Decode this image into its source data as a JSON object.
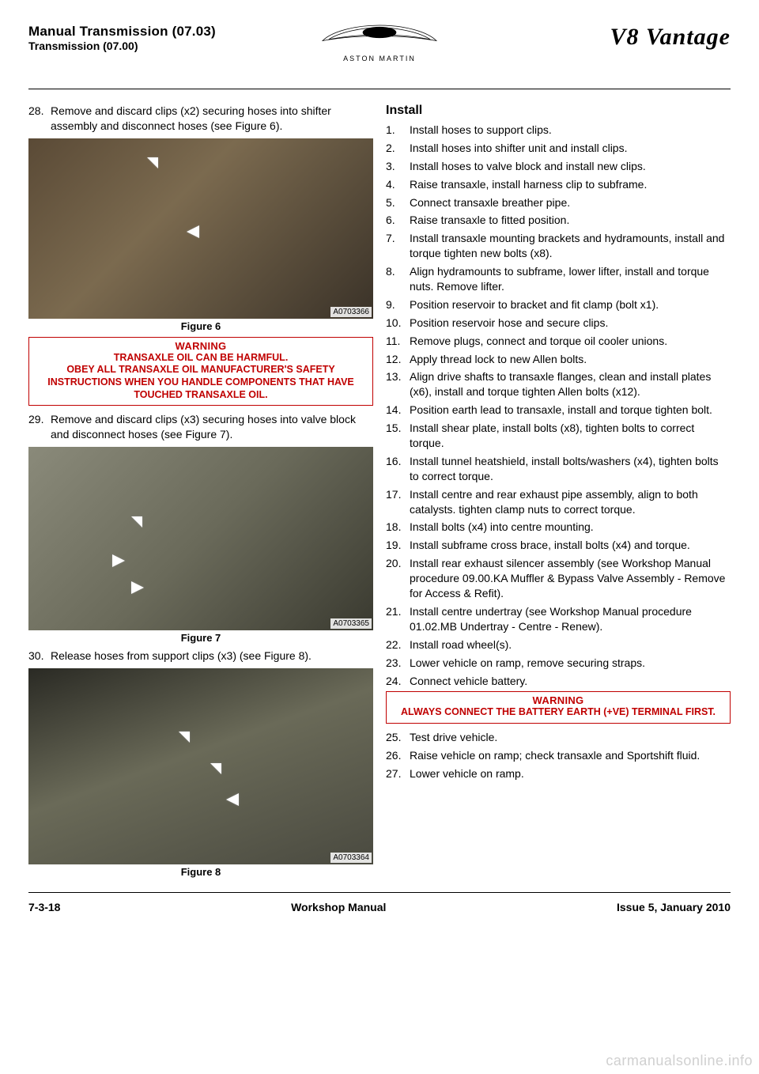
{
  "header": {
    "section_title": "Manual Transmission (07.03)",
    "section_sub": "Transmission (07.00)",
    "brand": "ASTON MARTIN",
    "model": "V8 Vantage"
  },
  "left_col": {
    "step28": {
      "n": "28.",
      "t": "Remove and discard clips (x2) securing hoses into shifter assembly and disconnect hoses (see Figure 6)."
    },
    "fig6": {
      "caption": "Figure 6",
      "imgid": "A0703366"
    },
    "warning1": {
      "title": "WARNING",
      "lines": [
        "TRANSAXLE OIL CAN BE HARMFUL.",
        "OBEY ALL TRANSAXLE OIL MANUFACTURER'S SAFETY INSTRUCTIONS WHEN YOU HANDLE COMPONENTS THAT HAVE TOUCHED TRANSAXLE OIL."
      ]
    },
    "step29": {
      "n": "29.",
      "t": "Remove and discard clips (x3) securing hoses into valve block and disconnect hoses (see Figure 7)."
    },
    "fig7": {
      "caption": "Figure 7",
      "imgid": "A0703365"
    },
    "step30": {
      "n": "30.",
      "t": "Release hoses from support clips (x3) (see Figure 8)."
    },
    "fig8": {
      "caption": "Figure 8",
      "imgid": "A0703364"
    }
  },
  "right_col": {
    "install_head": "Install",
    "steps": [
      {
        "n": "1.",
        "t": "Install hoses to support clips."
      },
      {
        "n": "2.",
        "t": "Install hoses into shifter unit and install clips."
      },
      {
        "n": "3.",
        "t": "Install hoses to valve block and install new clips."
      },
      {
        "n": "4.",
        "t": "Raise transaxle, install harness clip to subframe."
      },
      {
        "n": "5.",
        "t": "Connect transaxle breather pipe."
      },
      {
        "n": "6.",
        "t": "Raise transaxle to fitted position."
      },
      {
        "n": "7.",
        "t": "Install transaxle mounting brackets and hydramounts, install and torque tighten new bolts (x8)."
      },
      {
        "n": "8.",
        "t": "Align hydramounts to subframe, lower lifter, install and torque nuts. Remove lifter."
      },
      {
        "n": "9.",
        "t": "Position reservoir to bracket and fit clamp (bolt x1)."
      },
      {
        "n": "10.",
        "t": "Position reservoir hose and secure clips."
      },
      {
        "n": "11.",
        "t": "Remove plugs, connect and torque oil cooler unions."
      },
      {
        "n": "12.",
        "t": "Apply thread lock to new Allen bolts."
      },
      {
        "n": "13.",
        "t": "Align drive shafts to transaxle flanges, clean and install plates (x6), install and torque tighten Allen bolts (x12)."
      },
      {
        "n": "14.",
        "t": "Position earth lead to transaxle, install and torque tighten bolt."
      },
      {
        "n": "15.",
        "t": "Install shear plate, install bolts (x8), tighten bolts to correct torque."
      },
      {
        "n": "16.",
        "t": "Install tunnel heatshield, install bolts/washers (x4), tighten bolts to correct torque."
      },
      {
        "n": "17.",
        "t": "Install centre and rear exhaust pipe assembly, align to both catalysts. tighten clamp nuts to correct torque."
      },
      {
        "n": "18.",
        "t": "Install bolts (x4) into centre mounting."
      },
      {
        "n": "19.",
        "t": "Install subframe cross brace, install bolts (x4) and torque."
      },
      {
        "n": "20.",
        "t": "Install rear exhaust silencer assembly (see Workshop Manual procedure 09.00.KA Muffler & Bypass Valve Assembly - Remove for Access & Refit)."
      },
      {
        "n": "21.",
        "t": "Install centre undertray (see Workshop Manual procedure 01.02.MB Undertray - Centre - Renew)."
      },
      {
        "n": "22.",
        "t": "Install road wheel(s)."
      },
      {
        "n": "23.",
        "t": "Lower vehicle on ramp, remove securing straps."
      },
      {
        "n": "24.",
        "t": "Connect vehicle battery."
      }
    ],
    "warning2": {
      "title": "WARNING",
      "lines": [
        "ALWAYS CONNECT THE BATTERY EARTH (+VE) TERMINAL FIRST."
      ]
    },
    "steps2": [
      {
        "n": "25.",
        "t": "Test drive vehicle."
      },
      {
        "n": "26.",
        "t": "Raise vehicle on ramp; check transaxle and Sportshift fluid."
      },
      {
        "n": "27.",
        "t": "Lower vehicle on ramp."
      }
    ]
  },
  "footer": {
    "left": "7-3-18",
    "center": "Workshop Manual",
    "right": "Issue 5, January 2010"
  },
  "watermark": "carmanualsonline.info",
  "colors": {
    "warning_border": "#c00000",
    "warning_text": "#c00000",
    "rule": "#000000",
    "watermark": "#d0d0d0"
  }
}
